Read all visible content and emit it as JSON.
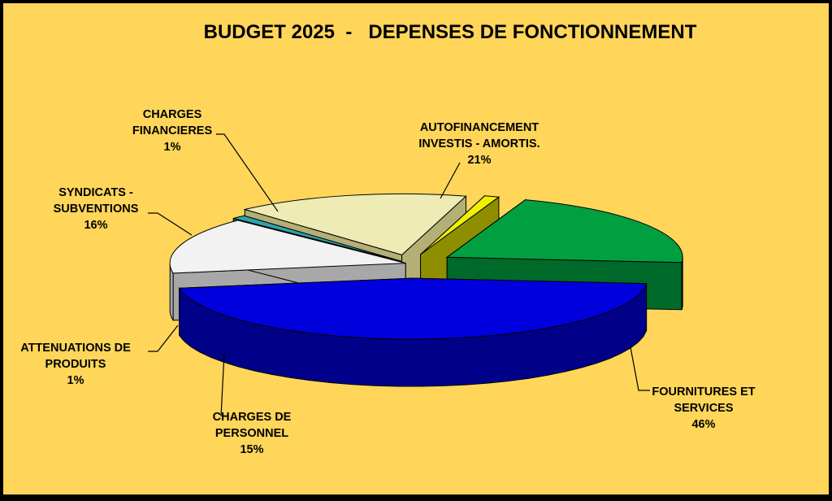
{
  "chart_data": {
    "type": "pie",
    "title": "BUDGET 2025  -   DEPENSES DE FONCTIONNEMENT",
    "slices": [
      {
        "label_lines": [
          "FOURNITURES ET",
          "SERVICES"
        ],
        "value": 46,
        "pct_label": "46%",
        "color": "#0000DD",
        "side_color": "#000088"
      },
      {
        "label_lines": [
          "CHARGES DE",
          "PERSONNEL"
        ],
        "value": 15,
        "pct_label": "15%",
        "color": "#F2F2F2",
        "side_color": "#A8A8A8"
      },
      {
        "label_lines": [
          "ATTENUATIONS DE",
          "PRODUITS"
        ],
        "value": 1,
        "pct_label": "1%",
        "color": "#2FA3A8",
        "side_color": "#1B6569"
      },
      {
        "label_lines": [
          "SYNDICATS -",
          "SUBVENTIONS"
        ],
        "value": 16,
        "pct_label": "16%",
        "color": "#EEEBB4",
        "side_color": "#B4AF74"
      },
      {
        "label_lines": [
          "CHARGES",
          "FINANCIERES"
        ],
        "value": 1,
        "pct_label": "1%",
        "color": "#F0F000",
        "side_color": "#8E8E00"
      },
      {
        "label_lines": [
          "AUTOFINANCEMENT",
          "INVESTIS - AMORTIS."
        ],
        "value": 21,
        "pct_label": "21%",
        "color": "#00A040",
        "side_color": "#006A2A"
      }
    ],
    "legend": "none",
    "style": "3d-exploded"
  }
}
